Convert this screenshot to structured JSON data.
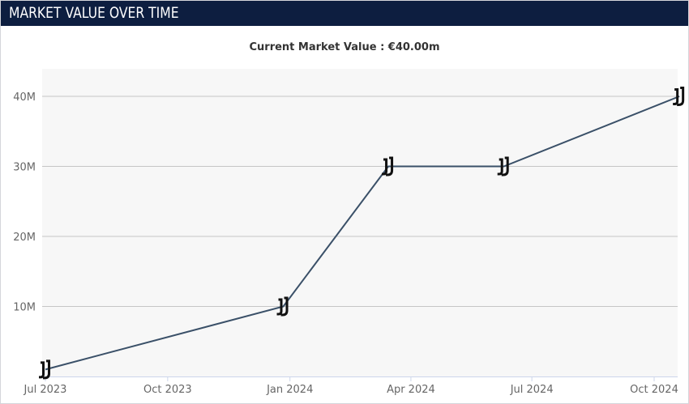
{
  "header": {
    "title": "MARKET VALUE OVER TIME"
  },
  "subtitle": {
    "label": "Current Market Value :",
    "value": "€40.00m"
  },
  "colors": {
    "header_bg": "#0d1e40",
    "line": "#3a5068",
    "plot_bg": "#f7f7f7",
    "grid": "#c6c6c6",
    "axis": "#ccd6eb"
  },
  "marker_icon": "club-crest-icon",
  "chart_data": {
    "type": "line",
    "x": [
      "2023-07-01",
      "2023-12-27",
      "2024-03-15",
      "2024-06-10",
      "2024-10-20"
    ],
    "values": [
      1000000,
      10000000,
      30000000,
      30000000,
      40000000
    ],
    "x_ticks": [
      {
        "date": "2023-07-01",
        "label": "Jul 2023"
      },
      {
        "date": "2023-10-01",
        "label": "Oct 2023"
      },
      {
        "date": "2024-01-01",
        "label": "Jan 2024"
      },
      {
        "date": "2024-04-01",
        "label": "Apr 2024"
      },
      {
        "date": "2024-07-01",
        "label": "Jul 2024"
      },
      {
        "date": "2024-10-01",
        "label": "Oct 2024"
      }
    ],
    "y_ticks": [
      {
        "value": 10000000,
        "label": "10M"
      },
      {
        "value": 20000000,
        "label": "20M"
      },
      {
        "value": 30000000,
        "label": "30M"
      },
      {
        "value": 40000000,
        "label": "40M"
      }
    ],
    "ylim": [
      0,
      40000000
    ],
    "grid": true
  }
}
